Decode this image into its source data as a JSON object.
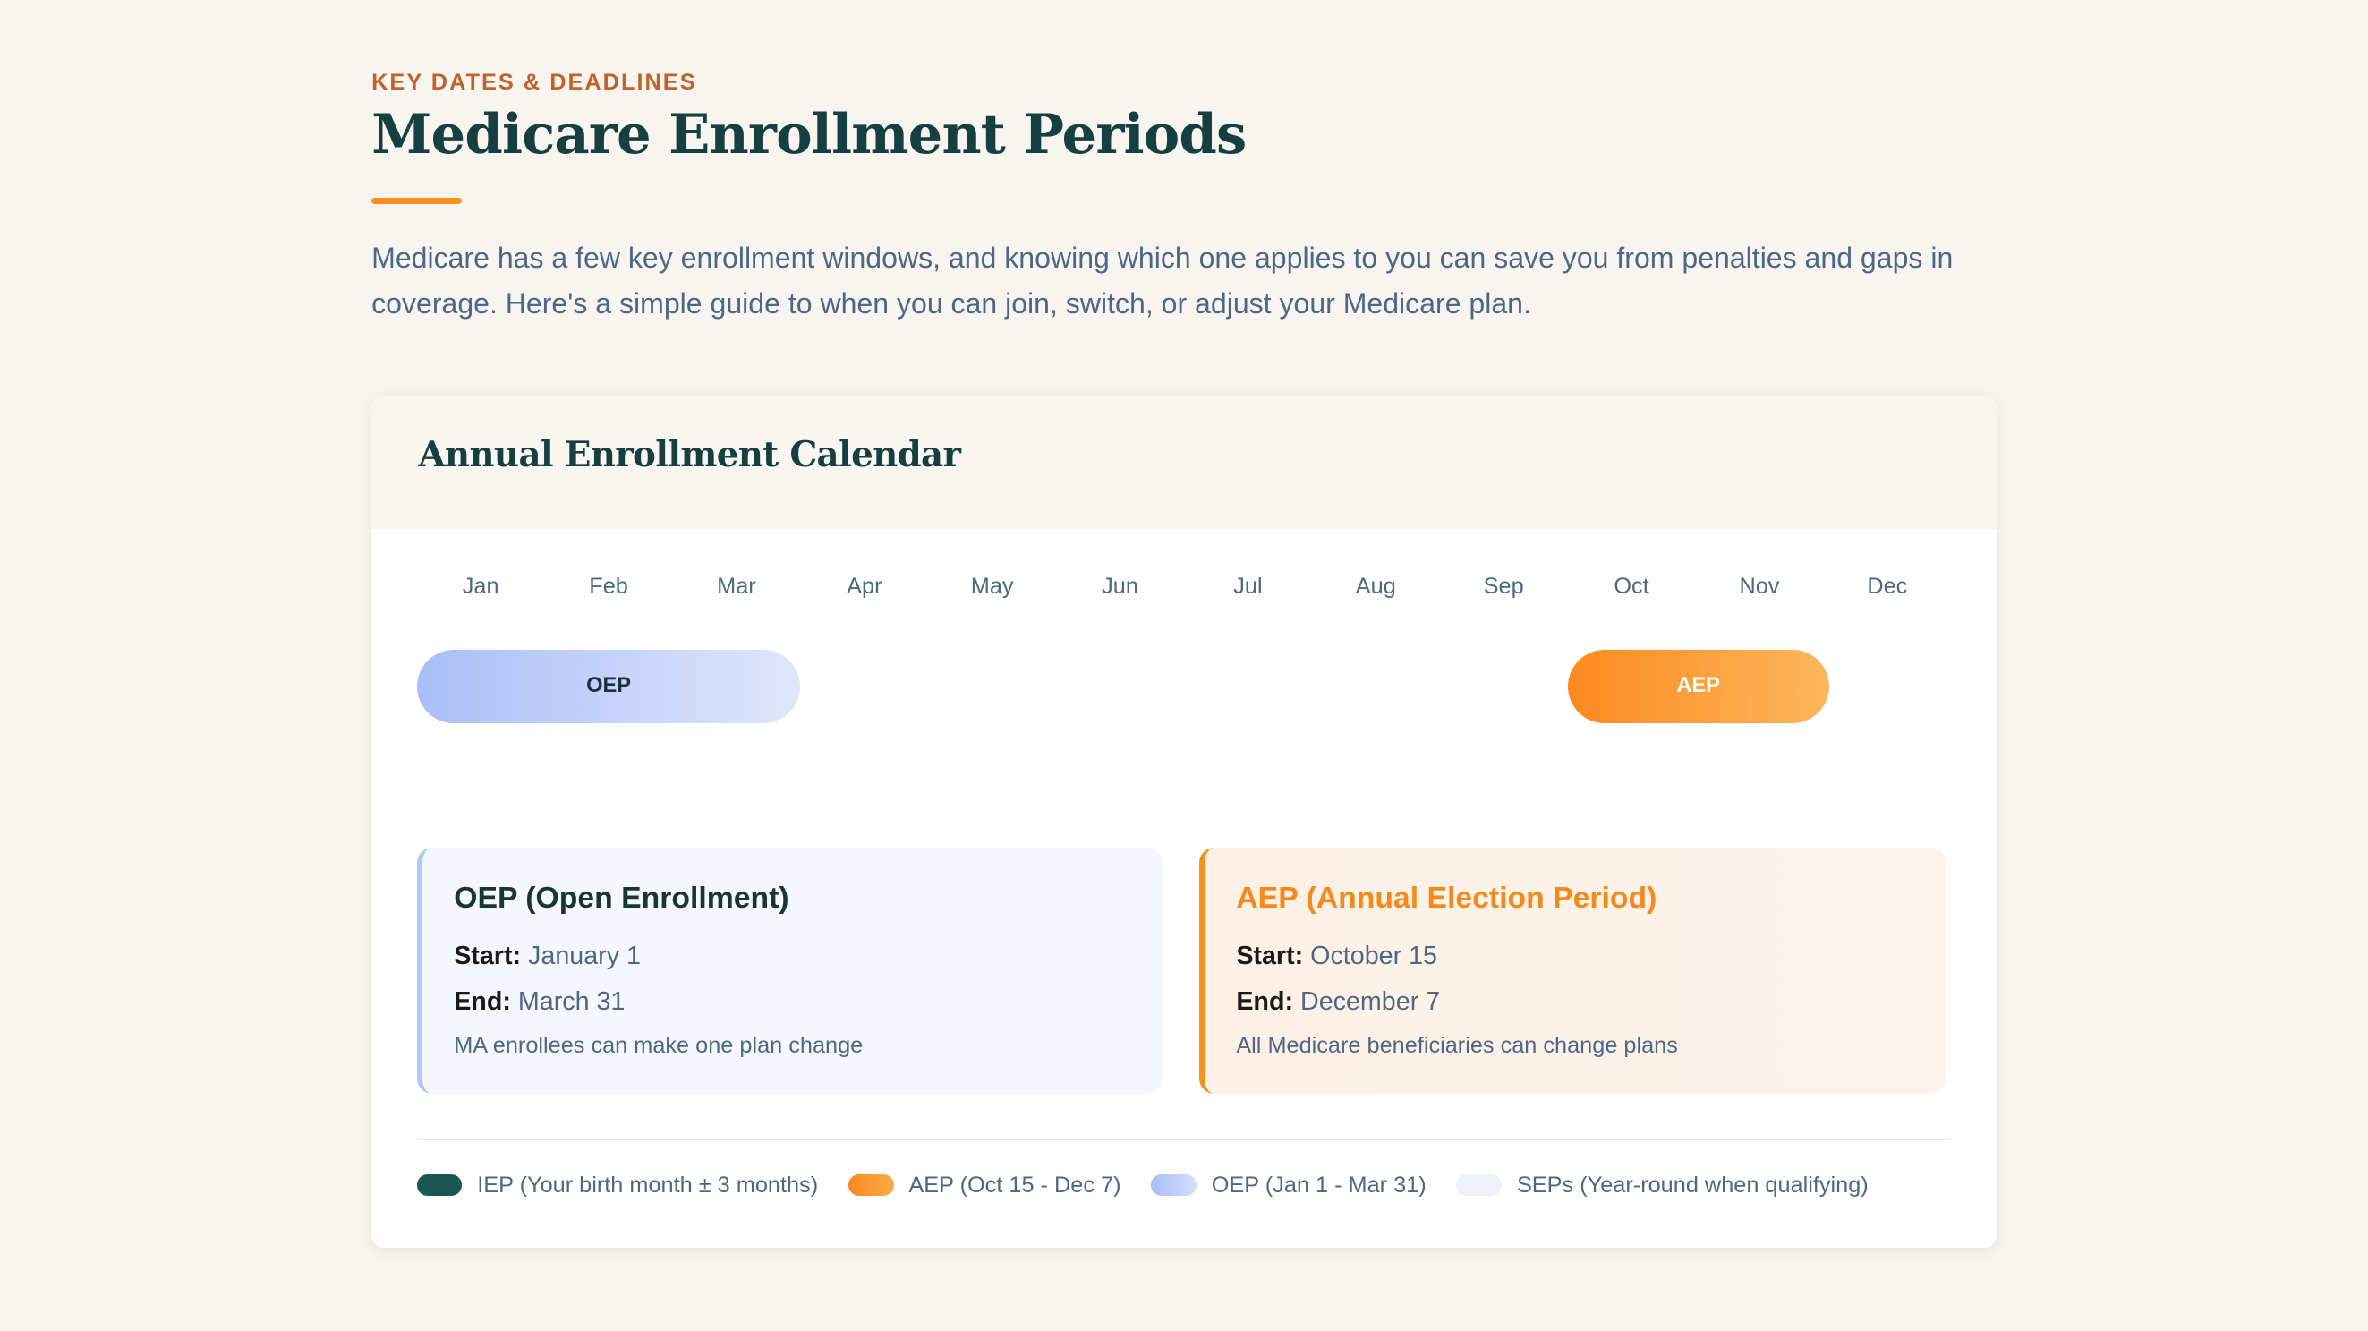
{
  "header": {
    "eyebrow": "KEY DATES & DEADLINES",
    "title": "Medicare Enrollment Periods",
    "intro": "Medicare has a few key enrollment windows, and knowing which one applies to you can save you from penalties and gaps in coverage. Here's a simple guide to when you can join, switch, or adjust your Medicare plan."
  },
  "calendar": {
    "title": "Annual Enrollment Calendar",
    "months": [
      "Jan",
      "Feb",
      "Mar",
      "Apr",
      "May",
      "Jun",
      "Jul",
      "Aug",
      "Sep",
      "Oct",
      "Nov",
      "Dec"
    ],
    "bars": {
      "oep": "OEP",
      "aep": "AEP"
    },
    "cards": [
      {
        "title": "OEP (Open Enrollment)",
        "start_label": "Start:",
        "start": "January 1",
        "end_label": "End:",
        "end": "March 31",
        "desc": "MA enrollees can make one plan change"
      },
      {
        "title": "AEP (Annual Election Period)",
        "start_label": "Start:",
        "start": "October 15",
        "end_label": "End:",
        "end": "December 7",
        "desc": "All Medicare beneficiaries can change plans"
      }
    ],
    "legend": [
      {
        "label": "IEP (Your birth month ± 3 months)",
        "color": "#1a5751"
      },
      {
        "label": "AEP (Oct 15 - Dec 7)",
        "color": "#fb9a30"
      },
      {
        "label": "OEP (Jan 1 - Mar 31)",
        "color": "#b7c8fa"
      },
      {
        "label": "SEPs (Year-round when qualifying)",
        "color": "#eef2f7"
      }
    ]
  }
}
